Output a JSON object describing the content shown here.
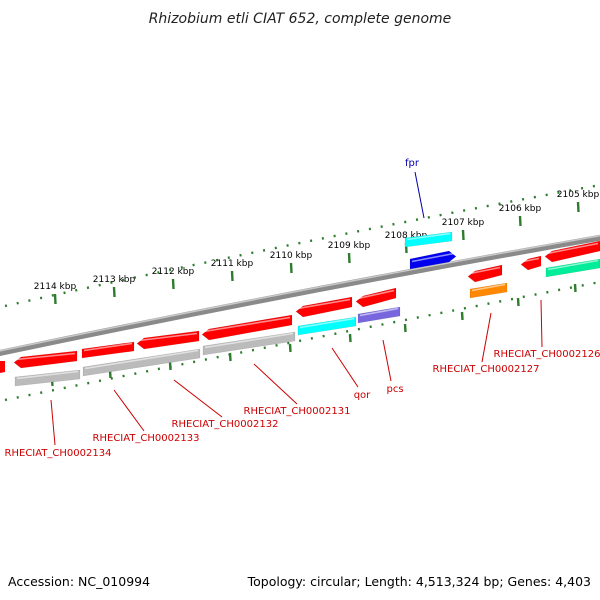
{
  "title": "Rhizobium etli CIAT 652, complete genome",
  "footer": {
    "accession": "Accession: NC_010994",
    "topology": "Topology: circular; Length: 4,513,324 bp; Genes: 4,403"
  },
  "colors": {
    "backbone": "#8a8a8a",
    "tick_major": "#2e7d2e",
    "label_red": "#cc0000",
    "label_blue": "#0000aa",
    "gene_red": "#ff0000",
    "gene_grey": "#bbbbbb",
    "gene_cyan": "#00ffff",
    "gene_blue": "#0000ee",
    "gene_orange": "#ff8800",
    "gene_green": "#00ee99",
    "gene_purple": "#7766dd"
  },
  "ticks": [
    {
      "label": "2114 kbp"
    },
    {
      "label": "2113 kbp"
    },
    {
      "label": "2112 kbp"
    },
    {
      "label": "2111 kbp"
    },
    {
      "label": "2110 kbp"
    },
    {
      "label": "2109 kbp"
    },
    {
      "label": "2108 kbp"
    },
    {
      "label": "2107 kbp"
    },
    {
      "label": "2106 kbp"
    },
    {
      "label": "2105 kbp"
    }
  ],
  "gene_labels": [
    {
      "text": "fpr",
      "color": "label_blue"
    },
    {
      "text": "RHECIAT_CH0002126",
      "color": "label_red"
    },
    {
      "text": "RHECIAT_CH0002127",
      "color": "label_red"
    },
    {
      "text": "pcs",
      "color": "label_red"
    },
    {
      "text": "qor",
      "color": "label_red"
    },
    {
      "text": "RHECIAT_CH0002131",
      "color": "label_red"
    },
    {
      "text": "RHECIAT_CH0002132",
      "color": "label_red"
    },
    {
      "text": "RHECIAT_CH0002133",
      "color": "label_red"
    },
    {
      "text": "RHECIAT_CH0002134",
      "color": "label_red"
    }
  ]
}
